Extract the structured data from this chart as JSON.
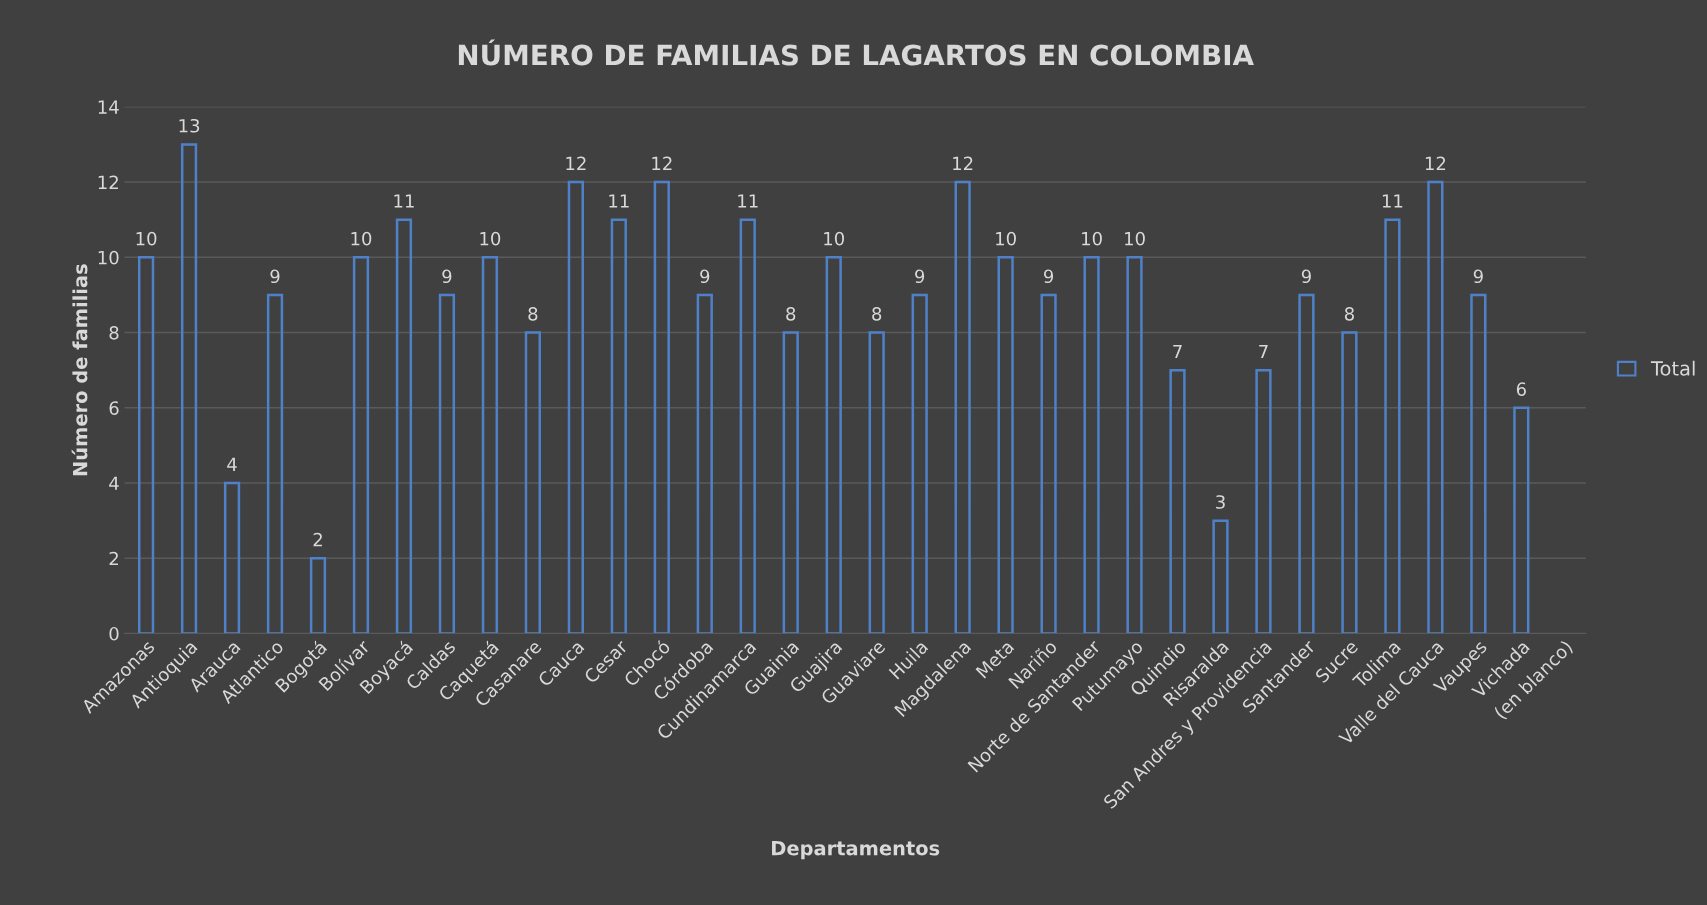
{
  "chart_data": {
    "type": "bar",
    "title": "NÚMERO DE FAMILIAS DE LAGARTOS EN COLOMBIA",
    "xlabel": "Departamentos",
    "ylabel": "Número de familias",
    "categories": [
      "Amazonas",
      "Antioquia",
      "Arauca",
      "Atlantico",
      "Bogotá",
      "Bolívar",
      "Boyacá",
      "Caldas",
      "Caquetá",
      "Casanare",
      "Cauca",
      "Cesar",
      "Chocó",
      "Córdoba",
      "Cundinamarca",
      "Guainia",
      "Guajira",
      "Guaviare",
      "Huila",
      "Magdalena",
      "Meta",
      "Nariño",
      "Norte de Santander",
      "Putumayo",
      "Quindio",
      "Risaralda",
      "San Andres y Providencia",
      "Santander",
      "Sucre",
      "Tolima",
      "Valle del Cauca",
      "Vaupes",
      "Vichada",
      "(en blanco)"
    ],
    "series": [
      {
        "name": "Total",
        "color": "#4f81c9",
        "values": [
          10,
          13,
          4,
          9,
          2,
          10,
          11,
          9,
          10,
          8,
          12,
          11,
          12,
          9,
          11,
          8,
          10,
          8,
          9,
          12,
          10,
          9,
          10,
          10,
          7,
          3,
          7,
          9,
          8,
          11,
          12,
          9,
          6,
          null
        ]
      }
    ],
    "ylim": [
      0,
      14
    ],
    "yticks": [
      0,
      2,
      4,
      6,
      8,
      10,
      12,
      14
    ],
    "grid": "y",
    "legend": "right",
    "data_labels": true
  }
}
